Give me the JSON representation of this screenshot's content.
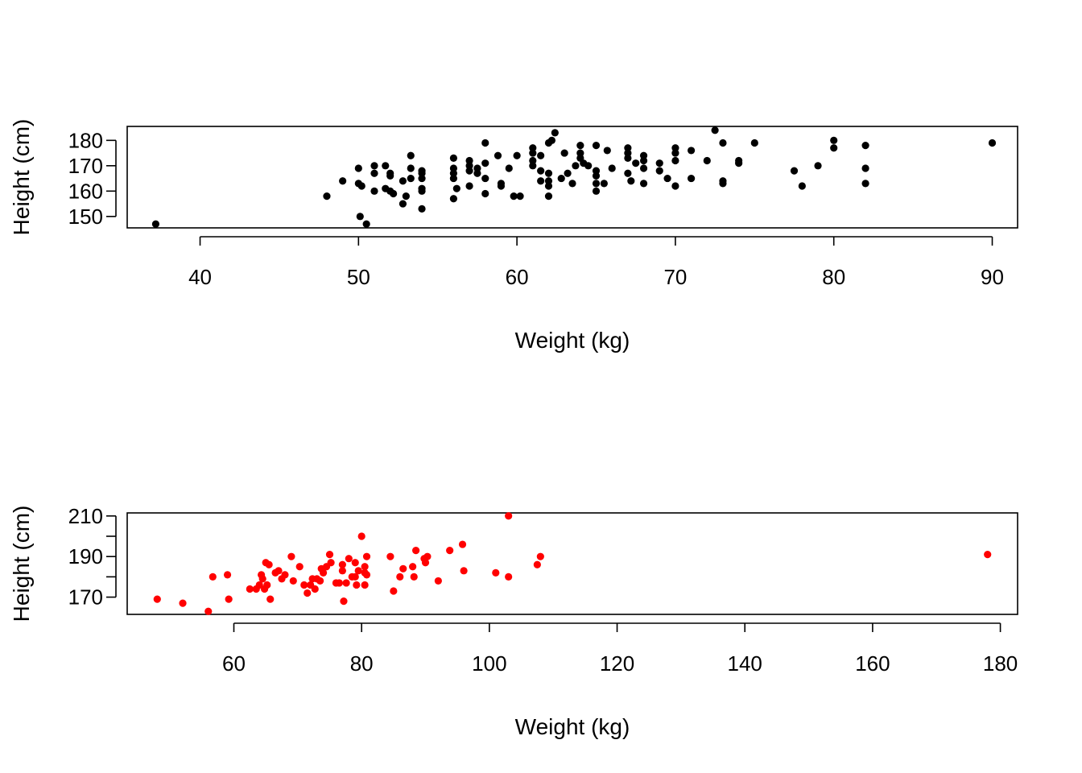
{
  "chart_data": [
    {
      "type": "scatter",
      "xlabel": "Weight (kg)",
      "ylabel": "Height (cm)",
      "xlim": [
        35.4,
        91.6
      ],
      "ylim": [
        145.5,
        185.5
      ],
      "xticks": [
        40,
        50,
        60,
        70,
        80,
        90
      ],
      "yticks": [
        150,
        160,
        170,
        180
      ],
      "grid": false,
      "series": [
        {
          "color": "#000000",
          "points": [
            [
              37.2,
              147
            ],
            [
              48,
              158
            ],
            [
              49,
              164
            ],
            [
              50,
              169
            ],
            [
              50,
              163
            ],
            [
              50.2,
              162
            ],
            [
              50.1,
              150
            ],
            [
              50.5,
              147
            ],
            [
              51,
              170
            ],
            [
              51,
              167
            ],
            [
              51,
              160
            ],
            [
              51.7,
              170
            ],
            [
              51.7,
              161
            ],
            [
              52,
              167
            ],
            [
              52,
              166
            ],
            [
              52,
              160
            ],
            [
              52.2,
              159
            ],
            [
              52.8,
              164
            ],
            [
              52.8,
              155
            ],
            [
              53,
              158
            ],
            [
              53.3,
              174
            ],
            [
              53.3,
              169
            ],
            [
              53.3,
              165
            ],
            [
              54,
              168
            ],
            [
              54,
              167
            ],
            [
              54,
              165
            ],
            [
              54,
              161
            ],
            [
              54,
              160
            ],
            [
              54,
              153
            ],
            [
              56,
              173
            ],
            [
              56,
              169
            ],
            [
              56,
              167
            ],
            [
              56,
              165
            ],
            [
              56.2,
              161
            ],
            [
              56,
              157
            ],
            [
              57,
              172
            ],
            [
              57,
              170
            ],
            [
              57,
              168
            ],
            [
              57,
              162
            ],
            [
              57.5,
              169
            ],
            [
              57.5,
              167
            ],
            [
              58,
              179
            ],
            [
              58,
              171
            ],
            [
              58,
              165
            ],
            [
              58,
              159
            ],
            [
              58.8,
              174
            ],
            [
              59,
              163
            ],
            [
              59,
              162
            ],
            [
              59.5,
              169
            ],
            [
              59.8,
              158
            ],
            [
              60.2,
              158
            ],
            [
              60,
              174
            ],
            [
              61,
              177
            ],
            [
              61,
              175
            ],
            [
              61,
              172
            ],
            [
              61,
              170
            ],
            [
              61.5,
              174
            ],
            [
              61.5,
              168
            ],
            [
              61.5,
              164
            ],
            [
              62,
              179
            ],
            [
              62,
              167
            ],
            [
              62,
              164
            ],
            [
              62,
              162
            ],
            [
              62,
              158
            ],
            [
              62.2,
              180
            ],
            [
              62.4,
              183
            ],
            [
              62.8,
              165
            ],
            [
              63,
              175
            ],
            [
              63.2,
              167
            ],
            [
              63.5,
              163
            ],
            [
              63.7,
              170
            ],
            [
              64,
              178
            ],
            [
              64,
              175
            ],
            [
              64,
              173
            ],
            [
              64.2,
              171
            ],
            [
              64.5,
              170
            ],
            [
              65,
              178
            ],
            [
              65,
              168
            ],
            [
              65,
              166
            ],
            [
              65,
              163
            ],
            [
              65,
              160
            ],
            [
              65.5,
              163
            ],
            [
              65.7,
              176
            ],
            [
              66,
              169
            ],
            [
              67,
              177
            ],
            [
              67,
              175
            ],
            [
              67,
              173
            ],
            [
              67,
              167
            ],
            [
              67.2,
              164
            ],
            [
              67.5,
              171
            ],
            [
              68,
              174
            ],
            [
              68,
              172
            ],
            [
              68,
              169
            ],
            [
              68,
              163
            ],
            [
              69,
              171
            ],
            [
              69,
              168
            ],
            [
              69.5,
              165
            ],
            [
              70,
              177
            ],
            [
              70,
              175
            ],
            [
              70,
              172
            ],
            [
              70,
              162
            ],
            [
              71,
              176
            ],
            [
              71,
              165
            ],
            [
              72,
              172
            ],
            [
              72.5,
              184
            ],
            [
              73,
              179
            ],
            [
              73,
              164
            ],
            [
              73,
              163
            ],
            [
              74,
              172
            ],
            [
              74,
              171
            ],
            [
              75,
              179
            ],
            [
              77.5,
              168
            ],
            [
              78,
              162
            ],
            [
              79,
              170
            ],
            [
              80,
              180
            ],
            [
              80,
              177
            ],
            [
              82,
              178
            ],
            [
              82,
              169
            ],
            [
              82,
              163
            ],
            [
              90,
              179
            ]
          ]
        }
      ]
    },
    {
      "type": "scatter",
      "xlabel": "Weight (kg)",
      "ylabel": "Height (cm)",
      "xlim": [
        43.3,
        182.7
      ],
      "ylim": [
        161.5,
        211.5
      ],
      "xticks": [
        60,
        80,
        100,
        120,
        140,
        160,
        180
      ],
      "yticks": [
        170,
        190,
        210
      ],
      "ytick_marks": [
        170,
        180,
        190,
        200,
        210
      ],
      "grid": false,
      "series": [
        {
          "color": "#ff0000",
          "points": [
            [
              48,
              169
            ],
            [
              52,
              167
            ],
            [
              56,
              163
            ],
            [
              56.7,
              180
            ],
            [
              59,
              181
            ],
            [
              59.2,
              169
            ],
            [
              62.5,
              174
            ],
            [
              63.5,
              174
            ],
            [
              64,
              176
            ],
            [
              64.3,
              181
            ],
            [
              64.5,
              179
            ],
            [
              64.8,
              174
            ],
            [
              65,
              187
            ],
            [
              65.2,
              176
            ],
            [
              65.5,
              186
            ],
            [
              65.7,
              169
            ],
            [
              66.5,
              182
            ],
            [
              67,
              183
            ],
            [
              67.5,
              179
            ],
            [
              68,
              181
            ],
            [
              69,
              190
            ],
            [
              69.3,
              178
            ],
            [
              70.3,
              185
            ],
            [
              71,
              176
            ],
            [
              71.5,
              172
            ],
            [
              72,
              176
            ],
            [
              72.3,
              179
            ],
            [
              72.7,
              174
            ],
            [
              73,
              179
            ],
            [
              73.5,
              178
            ],
            [
              73.7,
              184
            ],
            [
              74,
              182
            ],
            [
              74.5,
              185
            ],
            [
              75,
              191
            ],
            [
              75.2,
              187
            ],
            [
              76,
              177
            ],
            [
              76.5,
              177
            ],
            [
              77,
              183
            ],
            [
              77,
              186
            ],
            [
              77.2,
              168
            ],
            [
              77.6,
              177
            ],
            [
              78,
              189
            ],
            [
              78.5,
              180
            ],
            [
              79,
              187
            ],
            [
              79,
              180
            ],
            [
              79.2,
              176
            ],
            [
              79.5,
              183
            ],
            [
              80,
              200
            ],
            [
              80.5,
              176
            ],
            [
              80.5,
              185
            ],
            [
              80.5,
              182
            ],
            [
              80.8,
              190
            ],
            [
              80.8,
              181
            ],
            [
              84.5,
              190
            ],
            [
              85,
              173
            ],
            [
              86,
              180
            ],
            [
              86.5,
              184
            ],
            [
              88,
              185
            ],
            [
              88.2,
              180
            ],
            [
              88.5,
              193
            ],
            [
              89.8,
              189
            ],
            [
              90,
              187
            ],
            [
              90.3,
              190
            ],
            [
              92,
              178
            ],
            [
              93.8,
              193
            ],
            [
              95.8,
              196
            ],
            [
              96,
              183
            ],
            [
              101,
              182
            ],
            [
              103,
              210
            ],
            [
              103,
              180
            ],
            [
              107.5,
              186
            ],
            [
              108,
              190
            ],
            [
              178,
              191
            ]
          ]
        }
      ]
    }
  ]
}
